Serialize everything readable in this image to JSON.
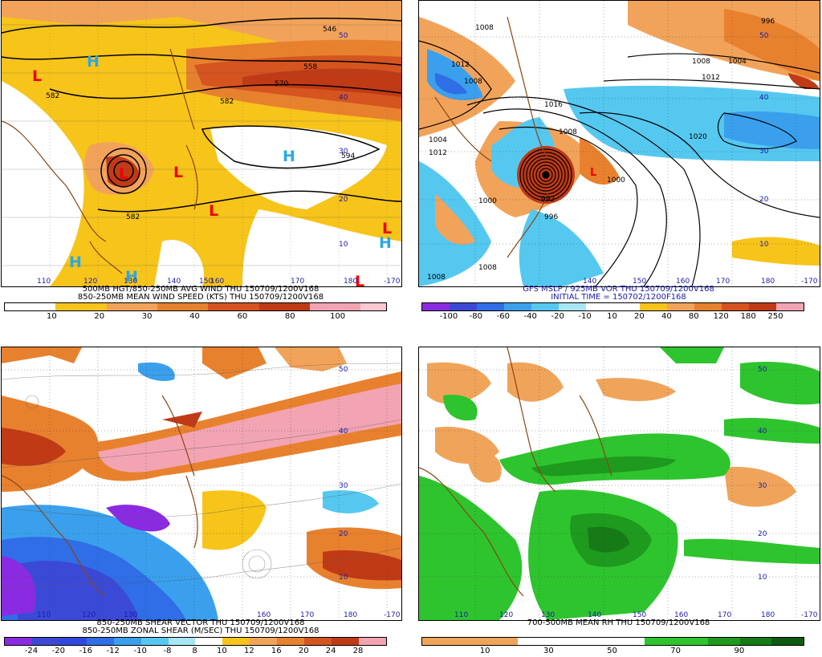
{
  "panels": {
    "p1": {
      "title_line1": "500MB HGT/850-250MB AVG WIND THU 150709/1200V168",
      "title_line2": "850-250MB MEAN WIND SPEED (KTS) THU 150709/1200V168",
      "colorbar_labels": [
        "10",
        "20",
        "30",
        "40",
        "60",
        "80",
        "100"
      ],
      "colorbar_colors": [
        "#ffffff",
        "#ffffff",
        "#f7c41a",
        "#f7c41a",
        "#f2a35a",
        "#f2a35a",
        "#e8812e",
        "#e8812e",
        "#d5541f",
        "#d5541f",
        "#c13a16",
        "#c13a16",
        "#f2a4b2",
        "#f2a4b2",
        "#f9c8d2"
      ],
      "contour_labels": [
        "546",
        "558",
        "570",
        "582",
        "582",
        "582",
        "594"
      ],
      "lat_labels": [
        "50",
        "40",
        "30",
        "20",
        "10"
      ],
      "lon_labels": [
        "110",
        "120",
        "130",
        "140",
        "150",
        "160",
        "170",
        "180",
        "-170"
      ]
    },
    "p2": {
      "title_line1": "GFS MSLP / 925MB VOR THU 150709/1200V168",
      "title_line2": "INITIAL TIME = 150702/1200F168",
      "colorbar_labels": [
        "-100",
        "-80",
        "-60",
        "-40",
        "-20",
        "-10",
        "10",
        "20",
        "40",
        "80",
        "120",
        "180",
        "250"
      ],
      "colorbar_colors": [
        "#8a2be2",
        "#3b4ad6",
        "#2f6ee6",
        "#3aa0ee",
        "#55c8f0",
        "#a8e6f5",
        "#ffffff",
        "#ffffff",
        "#f7c41a",
        "#f2a35a",
        "#e8812e",
        "#d5541f",
        "#c13a16",
        "#f2a4b2"
      ],
      "contour_labels": [
        "1008",
        "1012",
        "1008",
        "1004",
        "996",
        "1008",
        "1012",
        "1016",
        "1020",
        "1000",
        "992",
        "996",
        "1008",
        "1012",
        "1000",
        "1004",
        "1008",
        "1008"
      ],
      "lat_labels": [
        "50",
        "40",
        "30",
        "20",
        "10"
      ],
      "lon_labels": [
        "140",
        "150",
        "160",
        "170",
        "180",
        "-170"
      ]
    },
    "p3": {
      "title_line1": "850-250MB SHEAR VECTOR THU 150709/1200V168",
      "title_line2": "850-250MB ZONAL SHEAR (M/SEC) THU 150709/1200V168",
      "colorbar_labels": [
        "-24",
        "-20",
        "-16",
        "-12",
        "-10",
        "-8",
        "8",
        "10",
        "12",
        "16",
        "20",
        "24",
        "28"
      ],
      "colorbar_colors": [
        "#8a2be2",
        "#3b4ad6",
        "#2f49e0",
        "#2f6ee6",
        "#3aa0ee",
        "#55c8f0",
        "#a8e6f5",
        "#ffffff",
        "#f7c41a",
        "#f2a35a",
        "#e8812e",
        "#d5541f",
        "#c13a16",
        "#f2a4b2"
      ],
      "lat_labels": [
        "50",
        "40",
        "30",
        "20",
        "10"
      ],
      "lon_labels": [
        "110",
        "120",
        "130",
        "160",
        "170",
        "180",
        "-170"
      ]
    },
    "p4": {
      "title_line1": "700-500MB MEAN RH THU 150709/1200V168",
      "colorbar_labels": [
        "10",
        "30",
        "50",
        "70",
        "90"
      ],
      "colorbar_colors": [
        "#f0a45a",
        "#f0a45a",
        "#f0a45a",
        "#ffffff",
        "#ffffff",
        "#ffffff",
        "#ffffff",
        "#2ec42e",
        "#2ec42e",
        "#1e9a1e",
        "#167a16",
        "#0e5a0e"
      ],
      "lat_labels": [
        "50",
        "40",
        "30",
        "20",
        "10"
      ],
      "lon_labels": [
        "110",
        "120",
        "130",
        "140",
        "150",
        "160",
        "170",
        "180",
        "-170"
      ]
    }
  },
  "pressure_centers": {
    "p1": [
      "L",
      "H",
      "L",
      "L",
      "L",
      "H",
      "L",
      "H",
      "H",
      "H",
      "L"
    ],
    "p2": [
      "L"
    ]
  }
}
